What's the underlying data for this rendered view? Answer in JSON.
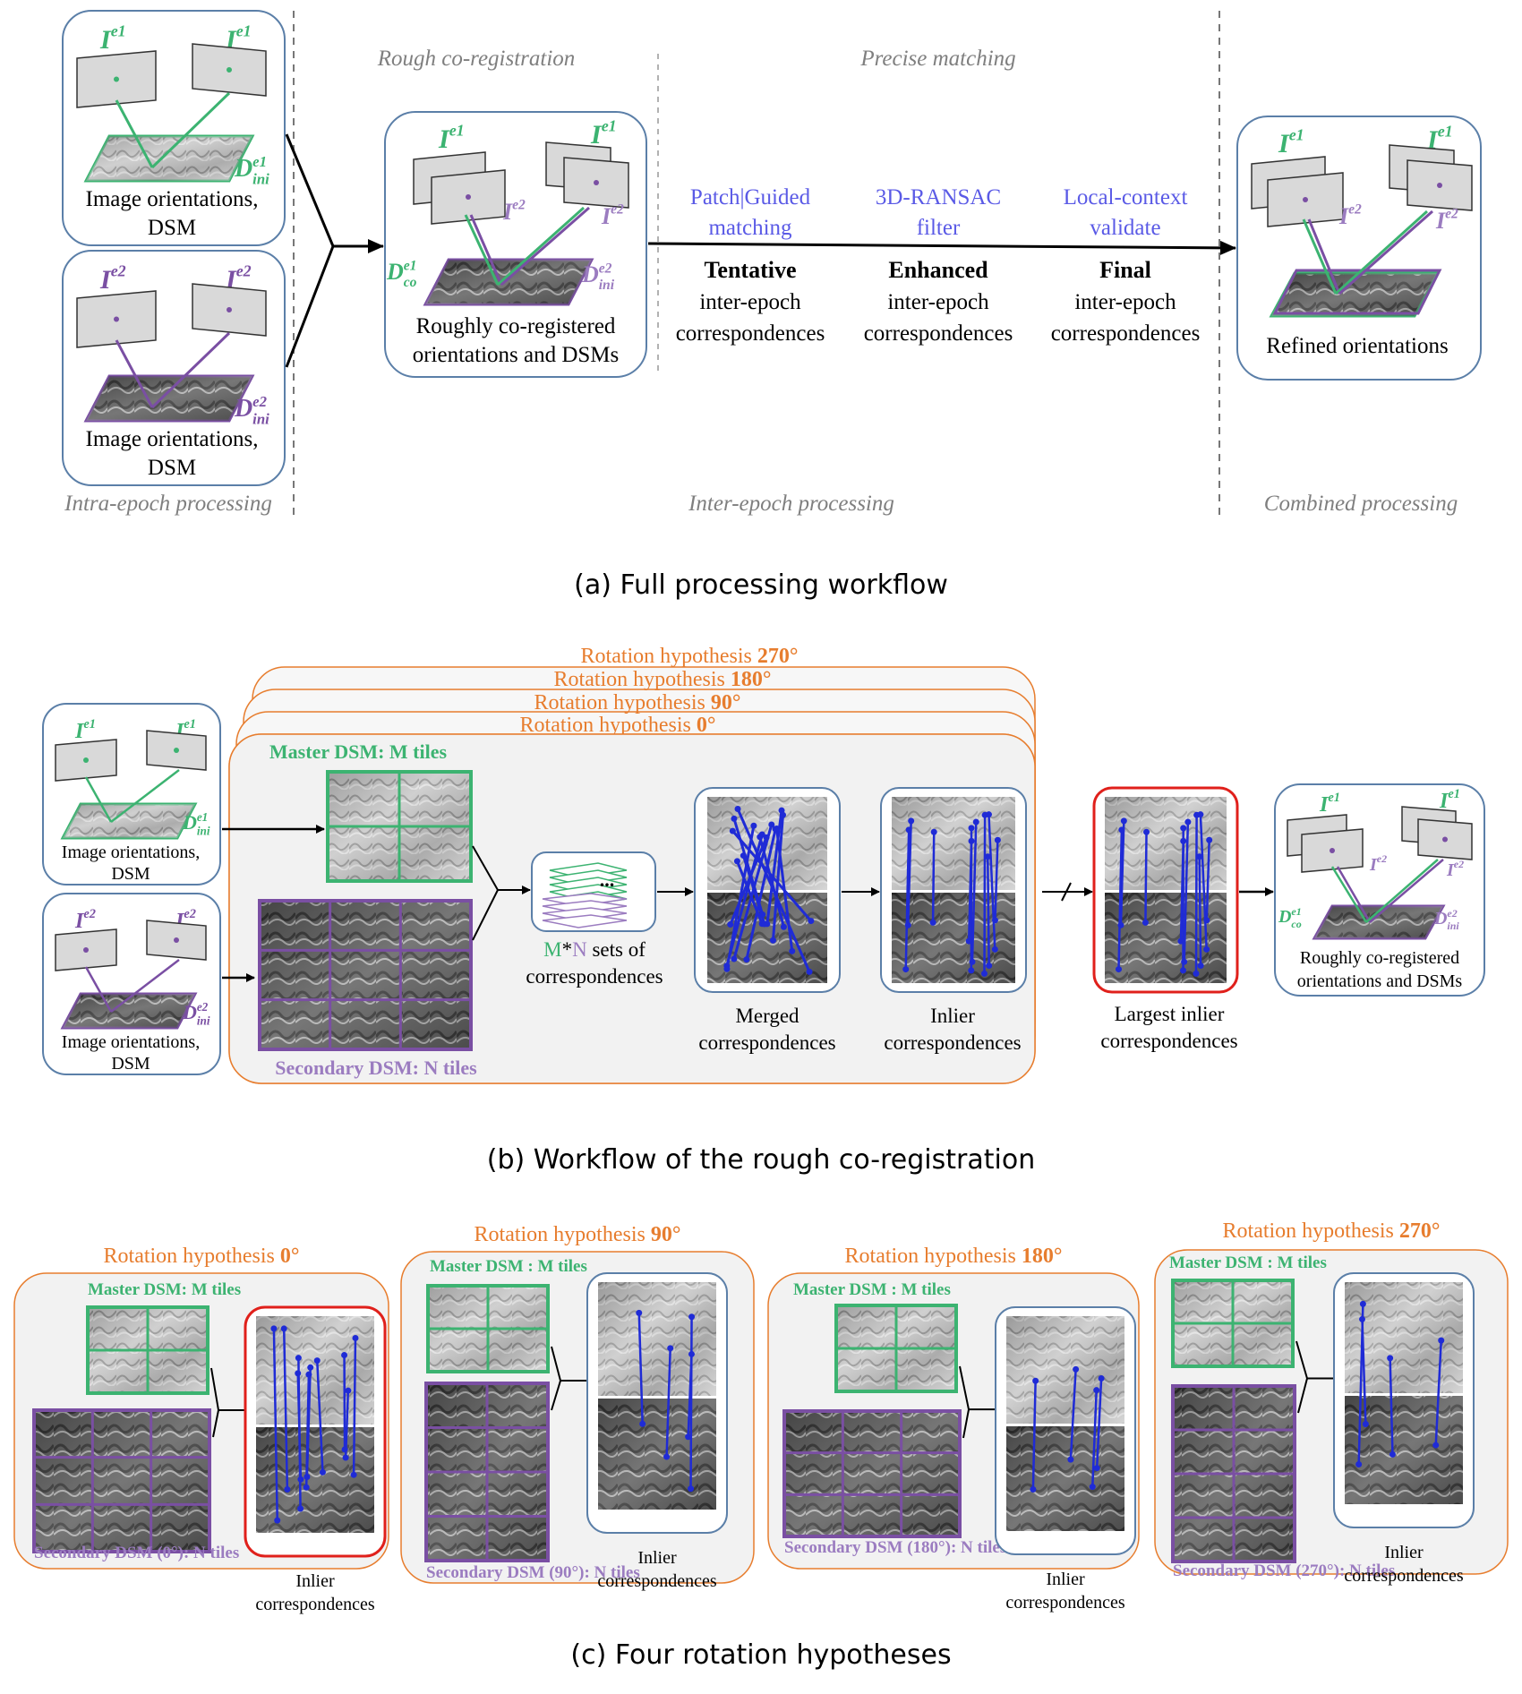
{
  "panel_a": {
    "phases": {
      "intra": "Intra-epoch processing",
      "rough": "Rough co-registration",
      "precise": "Precise matching",
      "inter": "Inter-epoch processing",
      "combined": "Combined processing"
    },
    "epoch1_caption": [
      "Image orientations,",
      "DSM"
    ],
    "epoch2_caption": [
      "Image orientations,",
      "DSM"
    ],
    "rough_caption": [
      "Roughly co-registered",
      "orientations and DSMs"
    ],
    "refined_caption": "Refined orientations",
    "steps": [
      {
        "method": [
          "Patch|Guided",
          "matching"
        ],
        "bold": "Tentative",
        "desc": [
          "inter-epoch",
          "correspondences"
        ]
      },
      {
        "method": [
          "3D-RANSAC",
          "filter"
        ],
        "bold": "Enhanced",
        "desc": [
          "inter-epoch",
          "correspondences"
        ]
      },
      {
        "method": [
          "Local-context",
          "validate"
        ],
        "bold": "Final",
        "desc": [
          "inter-epoch",
          "correspondences"
        ]
      }
    ],
    "caption": "(a) Full processing workflow"
  },
  "panel_b": {
    "hypotheses": [
      {
        "prefix": "Rotation hypothesis ",
        "angle": "270",
        "deg": "°"
      },
      {
        "prefix": "Rotation hypothesis ",
        "angle": "180",
        "deg": "°"
      },
      {
        "prefix": "Rotation hypothesis ",
        "angle": "90",
        "deg": "°"
      },
      {
        "prefix": "Rotation hypothesis ",
        "angle": "0",
        "deg": "°"
      }
    ],
    "master_label": "Master DSM: M tiles",
    "secondary_label": "Secondary DSM: N tiles",
    "sets": {
      "m": "M",
      "star": "*",
      "n": "N",
      "rest": " sets of",
      "line2": "correspondences"
    },
    "merged": [
      "Merged",
      "correspondences"
    ],
    "inlier": [
      "Inlier",
      "correspondences"
    ],
    "largest": [
      "Largest inlier",
      "correspondences"
    ],
    "epoch_caption": [
      "Image orientations,",
      "DSM"
    ],
    "rough_caption": [
      "Roughly co-registered",
      "orientations and DSMs"
    ],
    "caption": "(b) Workflow of the rough co-registration"
  },
  "panel_c": {
    "hypotheses": [
      {
        "prefix": "Rotation hypothesis ",
        "angle": "0",
        "deg": "°",
        "master": "Master DSM: M tiles",
        "secondary": "Secondary DSM (0°): N tiles",
        "inlier": [
          "Inlier",
          "correspondences"
        ]
      },
      {
        "prefix": "Rotation hypothesis ",
        "angle": "90",
        "deg": "°",
        "master": "Master DSM : M tiles",
        "secondary": "Secondary DSM (90°): N tiles",
        "inlier": [
          "Inlier",
          "correspondences"
        ]
      },
      {
        "prefix": "Rotation hypothesis ",
        "angle": "180",
        "deg": "°",
        "master": "Master DSM : M tiles",
        "secondary": "Secondary DSM (180°): N tiles",
        "inlier": [
          "Inlier",
          "correspondences"
        ]
      },
      {
        "prefix": "Rotation hypothesis ",
        "angle": "270",
        "deg": "°",
        "master": "Master DSM : M tiles",
        "secondary": "Secondary DSM (270°): N tiles",
        "inlier": [
          "Inlier",
          "correspondences"
        ]
      }
    ],
    "caption": "(c) Four rotation hypotheses"
  },
  "symbols": {
    "I": "I",
    "e1": "e1",
    "e2": "e2",
    "D": "D",
    "ini": "ini",
    "co": "co"
  },
  "colors": {
    "green": "#3cb371",
    "purple": "#7a4fa3",
    "lightpurple": "#9b7cc0",
    "orange": "#e77d2e",
    "blue": "#1f2bd6",
    "method_blue": "#5a5ae6",
    "box_border": "#5b7fa8",
    "red": "#e0201b",
    "gray_text": "#7f7f7f",
    "panel_bg": "#f2f2f2"
  }
}
